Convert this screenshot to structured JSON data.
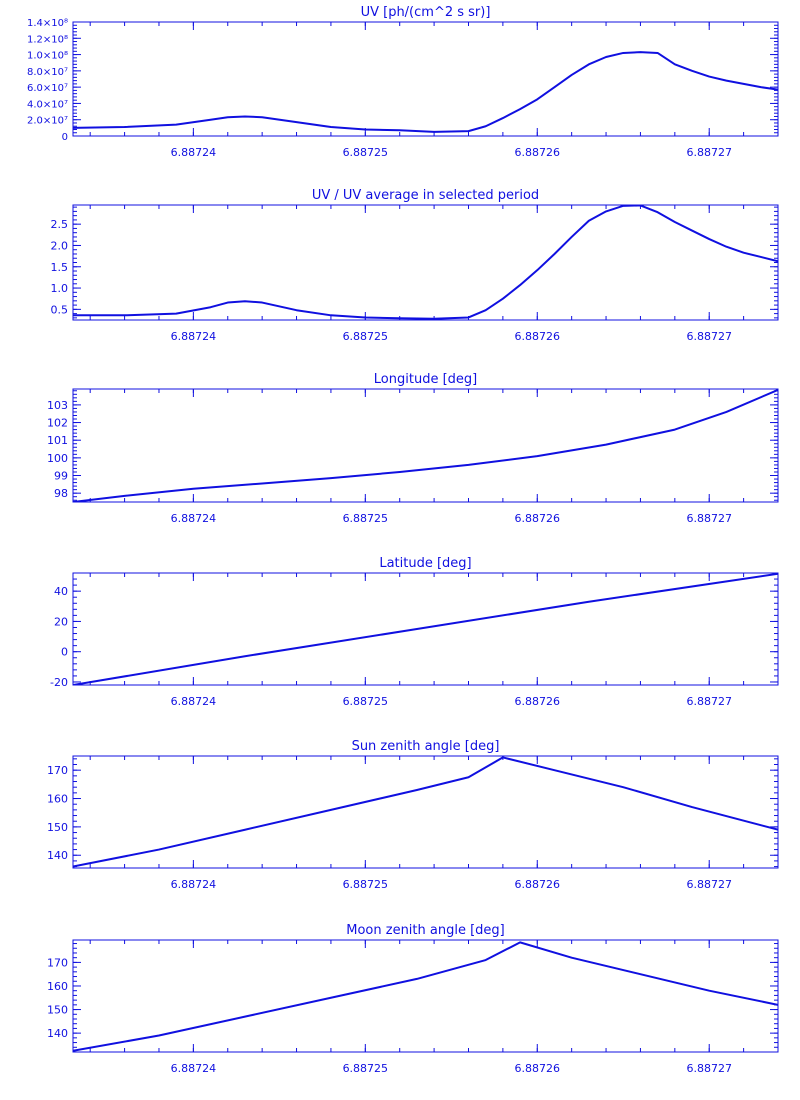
{
  "colors": {
    "plot": "#1010e0",
    "background": "#ffffff"
  },
  "x_tick_labels": [
    "6.88724",
    "6.88725",
    "6.88726",
    "6.88727"
  ],
  "chart_data": [
    {
      "type": "line",
      "title": "UV [ph/(cm^2 s sr)]",
      "xlabel": "",
      "ylabel": "",
      "xlim": [
        6.887233,
        6.887274
      ],
      "ylim": [
        0,
        140000000
      ],
      "y_ticks": [
        0,
        20000000,
        40000000,
        60000000,
        80000000,
        100000000,
        120000000,
        140000000
      ],
      "y_tick_labels": [
        "0",
        "2.0×10⁷",
        "4.0×10⁷",
        "6.0×10⁷",
        "8.0×10⁷",
        "1.0×10⁸",
        "1.2×10⁸",
        "1.4×10⁸"
      ],
      "series": [
        {
          "x": [
            6.887233,
            6.887236,
            6.887239,
            6.887241,
            6.887242,
            6.887243,
            6.887244,
            6.887246,
            6.887248,
            6.88725,
            6.887252,
            6.887254,
            6.887256,
            6.887257,
            6.887258,
            6.887259,
            6.88726,
            6.887261,
            6.887262,
            6.887263,
            6.887264,
            6.887265,
            6.887266,
            6.887267,
            6.887268,
            6.887269,
            6.88727,
            6.887271,
            6.887272,
            6.887273,
            6.887274
          ],
          "y": [
            10000000,
            11000000,
            14000000,
            20000000,
            23000000,
            24000000,
            23000000,
            17000000,
            11000000,
            8000000,
            7000000,
            5000000,
            6000000,
            12000000,
            22000000,
            33000000,
            45000000,
            60000000,
            75000000,
            88000000,
            97000000,
            102000000,
            103000000,
            102000000,
            88000000,
            80000000,
            73000000,
            68000000,
            64000000,
            60000000,
            57000000
          ]
        }
      ]
    },
    {
      "type": "line",
      "title": "UV / UV average in selected period",
      "xlabel": "",
      "ylabel": "",
      "xlim": [
        6.887233,
        6.887274
      ],
      "ylim": [
        0.25,
        2.95
      ],
      "y_ticks": [
        0.5,
        1.0,
        1.5,
        2.0,
        2.5
      ],
      "y_tick_labels": [
        "0.5",
        "1.0",
        "1.5",
        "2.0",
        "2.5"
      ],
      "series": [
        {
          "x": [
            6.887233,
            6.887236,
            6.887239,
            6.887241,
            6.887242,
            6.887243,
            6.887244,
            6.887246,
            6.887248,
            6.88725,
            6.887252,
            6.887254,
            6.887256,
            6.887257,
            6.887258,
            6.887259,
            6.88726,
            6.887261,
            6.887262,
            6.887263,
            6.887264,
            6.887265,
            6.887266,
            6.887267,
            6.887268,
            6.887269,
            6.88727,
            6.887271,
            6.887272,
            6.887273,
            6.887274
          ],
          "y": [
            0.36,
            0.36,
            0.4,
            0.55,
            0.66,
            0.69,
            0.66,
            0.48,
            0.36,
            0.31,
            0.29,
            0.28,
            0.31,
            0.48,
            0.75,
            1.07,
            1.42,
            1.8,
            2.2,
            2.58,
            2.8,
            2.93,
            2.94,
            2.78,
            2.55,
            2.35,
            2.15,
            1.97,
            1.83,
            1.73,
            1.63
          ]
        }
      ]
    },
    {
      "type": "line",
      "title": "Longitude [deg]",
      "xlabel": "",
      "ylabel": "",
      "xlim": [
        6.887233,
        6.887274
      ],
      "ylim": [
        97.5,
        103.9
      ],
      "y_ticks": [
        98,
        99,
        100,
        101,
        102,
        103
      ],
      "y_tick_labels": [
        "98",
        "99",
        "100",
        "101",
        "102",
        "103"
      ],
      "series": [
        {
          "x": [
            6.887233,
            6.887236,
            6.88724,
            6.887244,
            6.887248,
            6.887252,
            6.887256,
            6.88726,
            6.887264,
            6.887268,
            6.887271,
            6.887274
          ],
          "y": [
            97.5,
            97.85,
            98.25,
            98.55,
            98.85,
            99.2,
            99.6,
            100.1,
            100.75,
            101.6,
            102.6,
            103.85
          ]
        }
      ]
    },
    {
      "type": "line",
      "title": "Latitude [deg]",
      "xlabel": "",
      "ylabel": "",
      "xlim": [
        6.887233,
        6.887274
      ],
      "ylim": [
        -22,
        52
      ],
      "y_ticks": [
        -20,
        0,
        20,
        40
      ],
      "y_tick_labels": [
        "-20",
        "0",
        "20",
        "40"
      ],
      "series": [
        {
          "x": [
            6.887233,
            6.887243,
            6.887253,
            6.887263,
            6.887274
          ],
          "y": [
            -22,
            -3,
            15,
            33,
            51.5
          ]
        }
      ]
    },
    {
      "type": "line",
      "title": "Sun zenith angle [deg]",
      "xlabel": "",
      "ylabel": "",
      "xlim": [
        6.887233,
        6.887274
      ],
      "ylim": [
        135.5,
        175
      ],
      "y_ticks": [
        140,
        150,
        160,
        170
      ],
      "y_tick_labels": [
        "140",
        "150",
        "160",
        "170"
      ],
      "series": [
        {
          "x": [
            6.887233,
            6.887238,
            6.887243,
            6.887248,
            6.887253,
            6.887256,
            6.887258,
            6.887261,
            6.887265,
            6.887269,
            6.887274
          ],
          "y": [
            136,
            142,
            149,
            156,
            163,
            167.5,
            174.5,
            170,
            164,
            157,
            149
          ]
        }
      ]
    },
    {
      "type": "line",
      "title": "Moon zenith angle [deg]",
      "xlabel": "",
      "ylabel": "",
      "xlim": [
        6.887233,
        6.887274
      ],
      "ylim": [
        132,
        179.5
      ],
      "y_ticks": [
        140,
        150,
        160,
        170
      ],
      "y_tick_labels": [
        "140",
        "150",
        "160",
        "170"
      ],
      "series": [
        {
          "x": [
            6.887233,
            6.887238,
            6.887243,
            6.887248,
            6.887253,
            6.887257,
            6.887259,
            6.887262,
            6.887266,
            6.88727,
            6.887274
          ],
          "y": [
            132.5,
            139,
            147,
            155,
            163,
            171,
            178.5,
            172,
            165,
            158,
            152
          ]
        }
      ]
    }
  ]
}
